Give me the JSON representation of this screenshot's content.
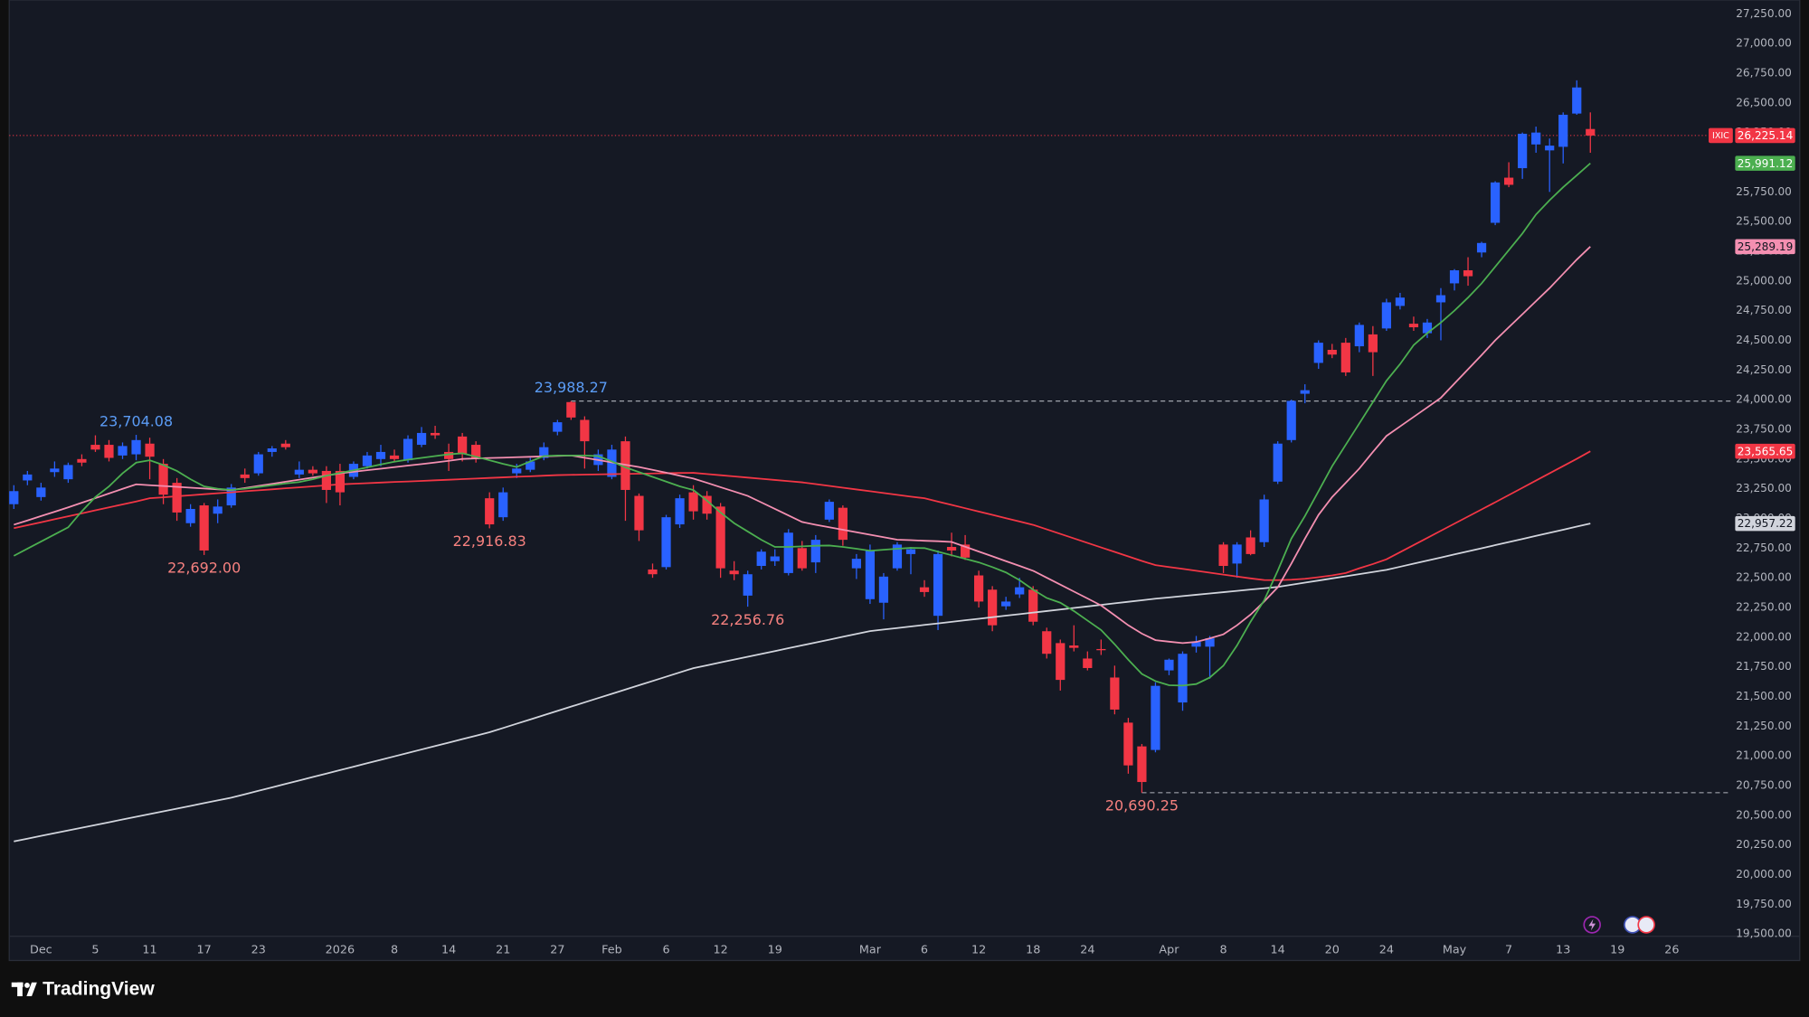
{
  "chart_data": {
    "type": "candlestick",
    "symbol": "IXIC",
    "price_label": "26,225.14",
    "up_color": "#2962ff",
    "down_color": "#f23645",
    "price_line": true,
    "grid": false,
    "brand": "TradingView",
    "categories": [
      null,
      null,
      "Dec",
      null,
      null,
      null,
      "5",
      null,
      null,
      null,
      "11",
      null,
      null,
      null,
      "17",
      null,
      null,
      null,
      "23",
      null,
      null,
      null,
      null,
      null,
      "2026",
      null,
      null,
      null,
      "8",
      null,
      null,
      null,
      "14",
      null,
      null,
      null,
      "21",
      null,
      null,
      null,
      "27",
      null,
      null,
      null,
      "Feb",
      null,
      null,
      null,
      "6",
      null,
      null,
      null,
      "12",
      null,
      null,
      null,
      "19",
      null,
      null,
      null,
      null,
      null,
      null,
      "Mar",
      null,
      null,
      null,
      "6",
      null,
      null,
      null,
      "12",
      null,
      null,
      null,
      "18",
      null,
      null,
      null,
      "24",
      null,
      null,
      null,
      null,
      null,
      "Apr",
      null,
      null,
      null,
      "8",
      null,
      null,
      null,
      "14",
      null,
      null,
      null,
      "20",
      null,
      null,
      null,
      "24",
      null,
      null,
      null,
      null,
      "May",
      null,
      null,
      null,
      "7",
      null,
      null,
      null,
      "13",
      null,
      null,
      null,
      "19",
      null,
      null,
      null,
      "26"
    ],
    "open": [
      23120,
      23320,
      23180,
      23390,
      23330,
      23500,
      23620,
      23620,
      23530,
      23540,
      23630,
      23460,
      23300,
      22960,
      23110,
      23040,
      23110,
      23370,
      23380,
      23560,
      23630,
      23370,
      23410,
      23400,
      23400,
      23350,
      23440,
      23500,
      23530,
      23490,
      23620,
      23720,
      23560,
      23690,
      23620,
      23170,
      23010,
      23380,
      23410,
      23510,
      23730,
      23980,
      23830,
      23450,
      23350,
      23650,
      23190,
      22570,
      22590,
      22950,
      23220,
      23190,
      23100,
      22560,
      22350,
      22600,
      22640,
      22540,
      22750,
      22630,
      22990,
      23090,
      22580,
      22320,
      22290,
      22580,
      22700,
      22420,
      22180,
      22760,
      22780,
      22520,
      22400,
      22260,
      22360,
      22400,
      22050,
      21950,
      21930,
      21820,
      21900,
      21660,
      21280,
      21080,
      21050,
      21720,
      21450,
      21920,
      21920,
      22780,
      22620,
      22840,
      22800,
      23310,
      23660,
      24050,
      24310,
      24420,
      24480,
      24450,
      24550,
      24600,
      24790,
      24640,
      24560,
      24820,
      24980,
      25090,
      25240,
      25490,
      25870,
      25950,
      26150,
      26100,
      26130,
      26410,
      26280,
      null,
      null,
      null,
      null,
      null,
      null
    ],
    "high": [
      23280,
      23400,
      23300,
      23480,
      23470,
      23540,
      23700,
      23660,
      23640,
      23704.08,
      23680,
      23500,
      23340,
      23120,
      23130,
      23160,
      23290,
      23420,
      23560,
      23610,
      23660,
      23480,
      23440,
      23440,
      23460,
      23480,
      23560,
      23620,
      23580,
      23700,
      23770,
      23780,
      23630,
      23720,
      23650,
      23220,
      23260,
      23460,
      23510,
      23640,
      23830,
      23988.27,
      23860,
      23580,
      23620,
      23690,
      23210,
      22620,
      23030,
      23200,
      23280,
      23230,
      23130,
      22640,
      22560,
      22740,
      22740,
      22910,
      22810,
      22860,
      23160,
      23110,
      22700,
      22780,
      22540,
      22800,
      22760,
      22480,
      22730,
      22880,
      22860,
      22560,
      22430,
      22340,
      22500,
      22430,
      22080,
      21980,
      22100,
      21880,
      21980,
      21760,
      21320,
      21100,
      21620,
      21820,
      21880,
      22010,
      22010,
      22800,
      22800,
      22900,
      23200,
      23650,
      24000,
      24130,
      24500,
      24470,
      24520,
      24650,
      24620,
      24850,
      24900,
      24700,
      24680,
      24940,
      25100,
      25200,
      25330,
      25840,
      26000,
      26250,
      26300,
      26200,
      26420,
      26690,
      26420,
      null,
      null,
      null,
      null,
      null,
      null
    ],
    "low": [
      23080,
      23280,
      23150,
      23350,
      23300,
      23440,
      23560,
      23480,
      23500,
      23490,
      23330,
      23120,
      22980,
      22930,
      22692,
      22960,
      23090,
      23300,
      23360,
      23520,
      23580,
      23340,
      23360,
      23130,
      23110,
      23330,
      23420,
      23440,
      23480,
      23470,
      23600,
      23670,
      23400,
      23480,
      23470,
      22916.83,
      22980,
      23340,
      23390,
      23490,
      23700,
      23830,
      23420,
      23400,
      23330,
      22980,
      22810,
      22500,
      22570,
      22920,
      22990,
      22990,
      22500,
      22480,
      22256.76,
      22570,
      22600,
      22520,
      22560,
      22540,
      22970,
      22770,
      22490,
      22280,
      22150,
      22560,
      22530,
      22340,
      22060,
      22680,
      22650,
      22250,
      22050,
      22230,
      22330,
      22100,
      21820,
      21550,
      21880,
      21720,
      21850,
      21350,
      20850,
      20690.25,
      21030,
      21680,
      21380,
      21870,
      21650,
      22540,
      22500,
      22690,
      22760,
      23290,
      23640,
      23970,
      24260,
      24350,
      24200,
      24400,
      24200,
      24580,
      24760,
      24580,
      24520,
      24500,
      24920,
      24960,
      25200,
      25470,
      25790,
      25860,
      26080,
      25750,
      25990,
      26400,
      26080,
      null,
      null,
      null,
      null,
      null,
      null
    ],
    "close": [
      23230,
      23370,
      23260,
      23420,
      23450,
      23470,
      23580,
      23510,
      23610,
      23660,
      23520,
      23200,
      23050,
      23080,
      22730,
      23100,
      23260,
      23340,
      23540,
      23590,
      23600,
      23410,
      23380,
      23240,
      23220,
      23460,
      23530,
      23560,
      23500,
      23670,
      23720,
      23700,
      23500,
      23540,
      23510,
      22950,
      23220,
      23420,
      23480,
      23600,
      23810,
      23850,
      23650,
      23540,
      23580,
      23240,
      22900,
      22530,
      23010,
      23170,
      23060,
      23040,
      22580,
      22530,
      22530,
      22720,
      22680,
      22880,
      22580,
      22820,
      23140,
      22820,
      22660,
      22730,
      22510,
      22780,
      22740,
      22380,
      22700,
      22730,
      22670,
      22300,
      22100,
      22300,
      22420,
      22130,
      21860,
      21640,
      21910,
      21740,
      21890,
      21390,
      20920,
      20780,
      21590,
      21810,
      21860,
      21960,
      21990,
      22600,
      22780,
      22700,
      23160,
      23630,
      23990,
      24080,
      24480,
      24380,
      24230,
      24630,
      24400,
      24820,
      24860,
      24610,
      24650,
      24880,
      25090,
      25040,
      25320,
      25830,
      25810,
      26240,
      26250,
      26140,
      26400,
      26630,
      26225.14,
      null,
      null,
      null,
      null,
      null,
      null
    ],
    "lines": [
      {
        "color": "#d1d4dc",
        "price_label": "22,957.22",
        "values": [
          20280,
          20303,
          20326,
          20349,
          20372,
          20395,
          20418,
          20441,
          20464,
          20487,
          20510,
          20533,
          20556,
          20579,
          20602,
          20625,
          20648,
          20677,
          20706,
          20735,
          20764,
          20793,
          20822,
          20851,
          20880,
          20909,
          20938,
          20967,
          20996,
          21025,
          21054,
          21083,
          21112,
          21141,
          21170,
          21199,
          21235,
          21271,
          21307,
          21343,
          21379,
          21415,
          21451,
          21487,
          21523,
          21559,
          21595,
          21631,
          21667,
          21703,
          21739,
          21763,
          21787,
          21811,
          21835,
          21859,
          21883,
          21907,
          21931,
          21955,
          21979,
          22003,
          22027,
          22051,
          22064,
          22077,
          22090,
          22103,
          22116,
          22129,
          22142,
          22155,
          22168,
          22181,
          22194,
          22207,
          22220,
          22233,
          22246,
          22259,
          22272,
          22285,
          22298,
          22311,
          22324,
          22335,
          22346,
          22357,
          22368,
          22379,
          22390,
          22401,
          22412,
          22423,
          22441,
          22459,
          22477,
          22495,
          22513,
          22531,
          22549,
          22567,
          22593,
          22619,
          22645,
          22671,
          22697,
          22723,
          22749,
          22775,
          22801,
          22827,
          22853,
          22879,
          22905,
          22931,
          22957.22,
          null,
          null,
          null,
          null,
          null,
          null
        ]
      },
      {
        "color": "#f23645",
        "price_label": "23,565.65",
        "values": [
          22918,
          22943,
          22968,
          22993,
          23018,
          23043,
          23068,
          23093,
          23118,
          23143,
          23170,
          23178,
          23187,
          23195,
          23204,
          23212,
          23220,
          23229,
          23237,
          23245,
          23254,
          23262,
          23270,
          23279,
          23287,
          23292,
          23297,
          23302,
          23307,
          23311,
          23316,
          23321,
          23326,
          23331,
          23336,
          23341,
          23346,
          23351,
          23355,
          23360,
          23365,
          23367,
          23369,
          23371,
          23373,
          23375,
          23377,
          23379,
          23381,
          23383,
          23384,
          23374,
          23364,
          23354,
          23344,
          23334,
          23324,
          23314,
          23304,
          23289,
          23274,
          23259,
          23244,
          23229,
          23214,
          23199,
          23184,
          23170,
          23142,
          23114,
          23086,
          23058,
          23030,
          23002,
          22974,
          22946,
          22908,
          22870,
          22832,
          22794,
          22756,
          22718,
          22680,
          22642,
          22607,
          22591,
          22575,
          22559,
          22543,
          22527,
          22511,
          22495,
          22481,
          22480,
          22484,
          22492,
          22505,
          22520,
          22540,
          22580,
          22616,
          22656,
          22716,
          22776,
          22836,
          22896,
          22956,
          23016,
          23076,
          23136,
          23197,
          23258,
          23319,
          23380,
          23441,
          23502,
          23565.65,
          null,
          null,
          null,
          null,
          null,
          null
        ]
      },
      {
        "color": "#f48fb1",
        "price_label": "25,289.19",
        "values": [
          22947,
          22983,
          23020,
          23056,
          23093,
          23132,
          23171,
          23210,
          23249,
          23287,
          23280,
          23273,
          23266,
          23259,
          23252,
          23245,
          23239,
          23256,
          23274,
          23291,
          23309,
          23326,
          23344,
          23361,
          23380,
          23393,
          23406,
          23419,
          23432,
          23445,
          23458,
          23471,
          23485,
          23501,
          23505,
          23509,
          23512,
          23516,
          23519,
          23523,
          23526,
          23530,
          23511,
          23492,
          23472,
          23452,
          23433,
          23409,
          23385,
          23360,
          23336,
          23300,
          23263,
          23227,
          23190,
          23135,
          23080,
          23025,
          22970,
          22947,
          22926,
          22905,
          22884,
          22863,
          22842,
          22821,
          22817,
          22812,
          22808,
          22802,
          22762,
          22721,
          22681,
          22640,
          22600,
          22559,
          22501,
          22443,
          22384,
          22326,
          22267,
          22184,
          22100,
          22030,
          21975,
          21962,
          21950,
          21960,
          21990,
          22024,
          22100,
          22190,
          22300,
          22420,
          22620,
          22830,
          23030,
          23180,
          23300,
          23420,
          23560,
          23695,
          23775,
          23855,
          23935,
          24016,
          24136,
          24256,
          24376,
          24500,
          24610,
          24720,
          24830,
          24940,
          25060,
          25180,
          25289.19,
          null,
          null,
          null,
          null,
          null,
          null
        ]
      },
      {
        "color": "#4caf50",
        "price_label": "25,991.12",
        "values": [
          22685,
          22745,
          22805,
          22865,
          22925,
          23060,
          23180,
          23270,
          23380,
          23470,
          23490,
          23450,
          23400,
          23330,
          23270,
          23250,
          23240,
          23250,
          23265,
          23280,
          23295,
          23306,
          23330,
          23360,
          23384,
          23405,
          23430,
          23455,
          23478,
          23495,
          23510,
          23525,
          23540,
          23549,
          23520,
          23490,
          23460,
          23433,
          23480,
          23525,
          23530,
          23530,
          23530,
          23525,
          23480,
          23430,
          23390,
          23350,
          23310,
          23270,
          23239,
          23150,
          23050,
          22960,
          22890,
          22820,
          22760,
          22760,
          22765,
          22770,
          22772,
          22760,
          22745,
          22728,
          22736,
          22745,
          22752,
          22750,
          22720,
          22690,
          22660,
          22630,
          22590,
          22545,
          22480,
          22400,
          22330,
          22290,
          22220,
          22140,
          22060,
          21940,
          21810,
          21690,
          21630,
          21595,
          21592,
          21605,
          21660,
          21760,
          21930,
          22130,
          22310,
          22560,
          22830,
          23020,
          23230,
          23440,
          23620,
          23800,
          23980,
          24160,
          24300,
          24460,
          24560,
          24650,
          24750,
          24860,
          24980,
          25120,
          25260,
          25400,
          25560,
          25680,
          25790,
          25890,
          25991.12,
          null,
          null,
          null,
          null,
          null,
          null
        ]
      }
    ],
    "annotations": [
      {
        "label": "23,704.08",
        "value": 23704.08
      },
      {
        "label": "22,692.00",
        "value": 22692
      },
      {
        "label": "22,916.83",
        "value": 22916.83
      },
      {
        "label": "23,988.27",
        "value": 23988.27,
        "line": "dashed"
      },
      {
        "label": "22,256.76",
        "value": 22256.76
      },
      {
        "label": "20,690.25",
        "value": 20690.25,
        "line": "dashed"
      }
    ],
    "ylim": [
      19500,
      27250
    ],
    "yticks": [
      {
        "value": 19500,
        "label": "19,500.00"
      },
      {
        "value": 19750,
        "label": "19,750.00"
      },
      {
        "value": 20000,
        "label": "20,000.00"
      },
      {
        "value": 20250,
        "label": "20,250.00"
      },
      {
        "value": 20500,
        "label": "20,500.00"
      },
      {
        "value": 20750,
        "label": "20,750.00"
      },
      {
        "value": 21000,
        "label": "21,000.00"
      },
      {
        "value": 21250,
        "label": "21,250.00"
      },
      {
        "value": 21500,
        "label": "21,500.00"
      },
      {
        "value": 21750,
        "label": "21,750.00"
      },
      {
        "value": 22000,
        "label": "22,000.00"
      },
      {
        "value": 22250,
        "label": "22,250.00"
      },
      {
        "value": 22500,
        "label": "22,500.00"
      },
      {
        "value": 22750,
        "label": "22,750.00"
      },
      {
        "value": 23000,
        "label": "23,000.00"
      },
      {
        "value": 23250,
        "label": "23,250.00"
      },
      {
        "value": 23500,
        "label": "23,500.00"
      },
      {
        "value": 23750,
        "label": "23,750.00"
      },
      {
        "value": 24000,
        "label": "24,000.00"
      },
      {
        "value": 24250,
        "label": "24,250.00"
      },
      {
        "value": 24500,
        "label": "24,500.00"
      },
      {
        "value": 24750,
        "label": "24,750.00"
      },
      {
        "value": 25000,
        "label": "25,000.00"
      },
      {
        "value": 25250,
        "label": "25,250.00"
      },
      {
        "value": 25500,
        "label": "25,500.00"
      },
      {
        "value": 25750,
        "label": "25,750.00"
      },
      {
        "value": 26000,
        "label": "26,000.00"
      },
      {
        "value": 26250,
        "label": "26,250.00"
      },
      {
        "value": 26500,
        "label": "26,500.00"
      },
      {
        "value": 26750,
        "label": "26,750.00"
      },
      {
        "value": 27000,
        "label": "27,000.00"
      },
      {
        "value": 27250,
        "label": "27,250.00"
      }
    ]
  }
}
